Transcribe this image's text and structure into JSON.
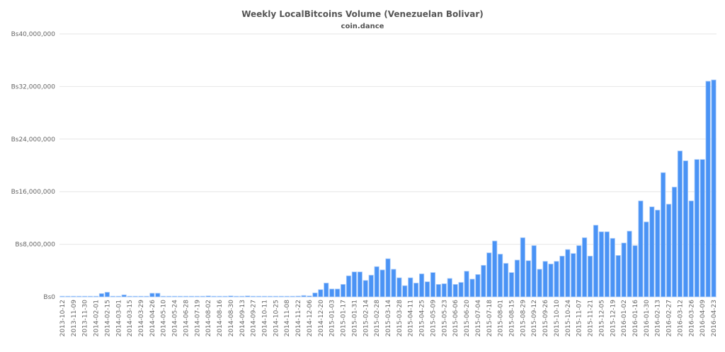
{
  "chart_data": {
    "type": "bar",
    "title": "Weekly LocalBitcoins Volume (Venezuelan Bolivar)",
    "subtitle": "coin.dance",
    "xlabel": "",
    "ylabel": "",
    "ylim": [
      0,
      40000000
    ],
    "grid": true,
    "legend": "none",
    "bar_color": "#4a93f5",
    "bar_edge_color": "#a9cbfa",
    "yticks": [
      {
        "value": 0,
        "label": "Bs0"
      },
      {
        "value": 8000000,
        "label": "Bs8,000,000"
      },
      {
        "value": 16000000,
        "label": "Bs16,000,000"
      },
      {
        "value": 24000000,
        "label": "Bs24,000,000"
      },
      {
        "value": 32000000,
        "label": "Bs32,000,000"
      },
      {
        "value": 40000000,
        "label": "Bs40,000,000"
      }
    ],
    "categories": [
      "2013-10-12",
      "",
      "2013-11-09",
      "",
      "2013-11-30",
      "",
      "2014-02-01",
      "",
      "2014-02-15",
      "",
      "2014-03-01",
      "",
      "2014-03-15",
      "",
      "2014-03-29",
      "",
      "2014-04-26",
      "",
      "2014-05-10",
      "",
      "2014-05-24",
      "",
      "2014-06-28",
      "",
      "2014-07-19",
      "",
      "2014-08-02",
      "",
      "2014-08-16",
      "",
      "2014-08-30",
      "",
      "2014-09-13",
      "",
      "2014-09-27",
      "",
      "2014-10-11",
      "",
      "2014-10-25",
      "",
      "2014-11-08",
      "",
      "2014-11-22",
      "",
      "2014-12-06",
      "",
      "2014-12-20",
      "",
      "2015-01-03",
      "",
      "2015-01-17",
      "",
      "2015-01-31",
      "",
      "2015-02-14",
      "",
      "2015-02-28",
      "",
      "2015-03-14",
      "",
      "2015-03-28",
      "",
      "2015-04-11",
      "",
      "2015-04-25",
      "",
      "2015-05-09",
      "",
      "2015-05-23",
      "",
      "2015-06-06",
      "",
      "2015-06-20",
      "",
      "2015-07-04",
      "",
      "2015-07-18",
      "",
      "2015-08-01",
      "",
      "2015-08-15",
      "",
      "2015-08-29",
      "",
      "2015-09-12",
      "",
      "2015-09-26",
      "",
      "2015-10-10",
      "",
      "2015-10-24",
      "",
      "2015-11-07",
      "",
      "2015-11-21",
      "",
      "2015-12-05",
      "",
      "2015-12-19",
      "",
      "2016-01-02",
      "",
      "2016-01-16",
      "",
      "2016-01-30",
      "",
      "2016-02-13",
      "",
      "2016-02-27",
      "",
      "2016-03-12",
      "",
      "2016-03-26",
      "",
      "2016-04-09",
      "",
      "2016-04-23"
    ],
    "values": [
      100000,
      100000,
      100000,
      100000,
      100000,
      100000,
      100000,
      500000,
      700000,
      100000,
      100000,
      300000,
      100000,
      100000,
      100000,
      100000,
      550000,
      550000,
      100000,
      100000,
      100000,
      100000,
      100000,
      100000,
      100000,
      100000,
      150000,
      100000,
      100000,
      100000,
      150000,
      100000,
      100000,
      150000,
      100000,
      100000,
      100000,
      100000,
      100000,
      100000,
      100000,
      100000,
      120000,
      200000,
      150000,
      600000,
      1100000,
      2100000,
      1200000,
      1200000,
      1900000,
      3200000,
      3800000,
      3800000,
      2500000,
      3300000,
      4600000,
      4100000,
      5800000,
      4200000,
      2900000,
      1700000,
      2900000,
      2100000,
      3500000,
      2300000,
      3700000,
      1900000,
      2000000,
      2800000,
      1900000,
      2200000,
      3900000,
      2700000,
      3400000,
      4800000,
      6700000,
      8500000,
      6500000,
      5100000,
      3700000,
      5600000,
      9000000,
      5500000,
      7800000,
      4200000,
      5400000,
      5000000,
      5400000,
      6200000,
      7200000,
      6600000,
      7800000,
      9000000,
      6200000,
      10900000,
      9900000,
      9900000,
      8900000,
      6300000,
      8200000,
      10000000,
      7800000,
      14600000,
      11400000,
      13700000,
      13200000,
      18900000,
      14100000,
      16700000,
      22200000,
      20700000,
      14600000,
      20900000,
      20900000,
      32800000,
      33000000
    ]
  }
}
